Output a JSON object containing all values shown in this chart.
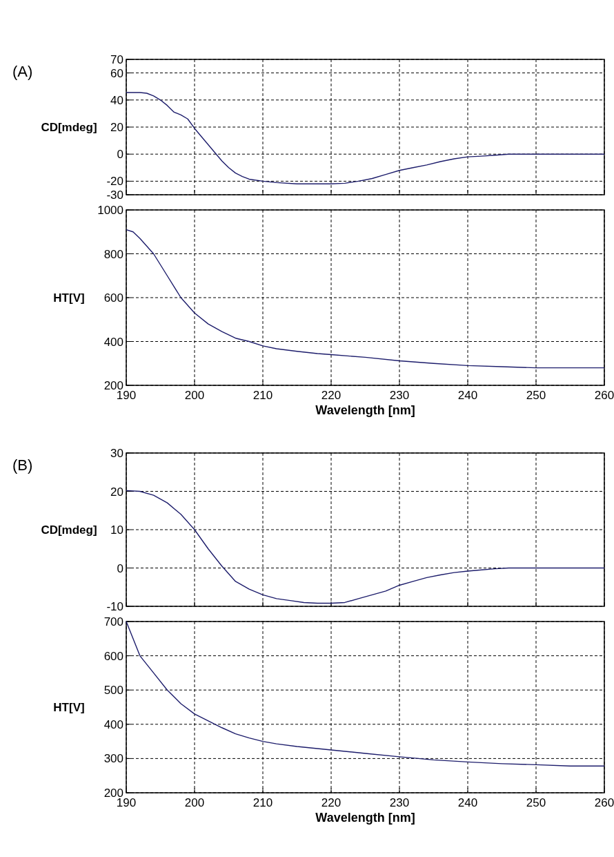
{
  "chart_data": [
    {
      "type": "line",
      "title": "(A)",
      "ylabel": "CD[mdeg]",
      "xlim": [
        190,
        260
      ],
      "xticks": [
        190,
        200,
        210,
        220,
        230,
        240,
        250,
        260
      ],
      "ylim": [
        -30,
        70
      ],
      "yticks": [
        -30,
        -20,
        0,
        20,
        40,
        60,
        70
      ],
      "tick_labels": "y",
      "grid": true,
      "line_style": "solid",
      "series": [
        {
          "color": "#1c1c6b",
          "x": [
            190,
            192,
            193,
            194,
            195,
            196,
            197,
            198,
            199,
            200,
            201,
            202,
            203,
            204,
            205,
            206,
            207,
            208,
            210,
            212,
            215,
            218,
            220,
            222,
            224,
            226,
            228,
            230,
            232,
            234,
            236,
            238,
            240,
            242,
            244,
            246,
            250,
            260
          ],
          "values": [
            45.5,
            45.5,
            45,
            43,
            40,
            36,
            31,
            29,
            26,
            19,
            13,
            7,
            1,
            -5,
            -10,
            -14,
            -16.5,
            -18.5,
            -20,
            -21,
            -22,
            -22,
            -22,
            -21.5,
            -20,
            -18,
            -15,
            -12,
            -10,
            -8,
            -5.5,
            -3.5,
            -2,
            -1.5,
            -0.8,
            0,
            0,
            0
          ]
        }
      ]
    },
    {
      "type": "line",
      "xlabel": "Wavelength [nm]",
      "ylabel": "HT[V]",
      "xlim": [
        190,
        260
      ],
      "xticks": [
        190,
        200,
        210,
        220,
        230,
        240,
        250,
        260
      ],
      "ylim": [
        200,
        1000
      ],
      "yticks": [
        200,
        400,
        600,
        800,
        1000
      ],
      "grid": true,
      "line_style": "solid",
      "series": [
        {
          "color": "#1c1c6b",
          "x": [
            190,
            191,
            192,
            194,
            196,
            198,
            200,
            202,
            204,
            206,
            208,
            210,
            212,
            215,
            218,
            220,
            225,
            230,
            235,
            240,
            245,
            250,
            260
          ],
          "values": [
            910,
            900,
            870,
            800,
            700,
            600,
            530,
            480,
            445,
            415,
            400,
            380,
            367,
            355,
            345,
            340,
            328,
            312,
            300,
            290,
            285,
            280,
            280
          ]
        }
      ]
    },
    {
      "type": "line",
      "title": "(B)",
      "ylabel": "CD[mdeg]",
      "xlim": [
        190,
        260
      ],
      "xticks": [
        190,
        200,
        210,
        220,
        230,
        240,
        250,
        260
      ],
      "ylim": [
        -10,
        30
      ],
      "yticks": [
        -10,
        0,
        10,
        20,
        30
      ],
      "tick_labels": "y",
      "grid": true,
      "line_style": "solid",
      "series": [
        {
          "color": "#1c1c6b",
          "x": [
            190,
            192,
            194,
            196,
            198,
            200,
            202,
            204,
            206,
            208,
            210,
            212,
            214,
            216,
            218,
            220,
            222,
            224,
            226,
            228,
            230,
            232,
            234,
            236,
            238,
            240,
            242,
            244,
            246,
            260
          ],
          "values": [
            20.2,
            20,
            19,
            17,
            14,
            10,
            5,
            0.5,
            -3.5,
            -5.5,
            -7,
            -8,
            -8.5,
            -9,
            -9.2,
            -9.2,
            -9,
            -8,
            -7,
            -6,
            -4.5,
            -3.5,
            -2.5,
            -1.8,
            -1.2,
            -0.8,
            -0.5,
            -0.2,
            0,
            0
          ]
        }
      ]
    },
    {
      "type": "line",
      "xlabel": "Wavelength [nm]",
      "ylabel": "HT[V]",
      "xlim": [
        190,
        260
      ],
      "xticks": [
        190,
        200,
        210,
        220,
        230,
        240,
        250,
        260
      ],
      "ylim": [
        200,
        700
      ],
      "yticks": [
        200,
        300,
        400,
        500,
        600,
        700
      ],
      "grid": true,
      "line_style": "solid",
      "series": [
        {
          "color": "#1c1c6b",
          "x": [
            190,
            192,
            194,
            196,
            198,
            200,
            202,
            204,
            206,
            208,
            210,
            212,
            215,
            220,
            225,
            230,
            235,
            240,
            245,
            250,
            255,
            260
          ],
          "values": [
            700,
            600,
            550,
            500,
            460,
            430,
            410,
            390,
            372,
            360,
            350,
            343,
            335,
            325,
            315,
            305,
            296,
            290,
            285,
            282,
            278,
            278
          ]
        }
      ]
    }
  ]
}
